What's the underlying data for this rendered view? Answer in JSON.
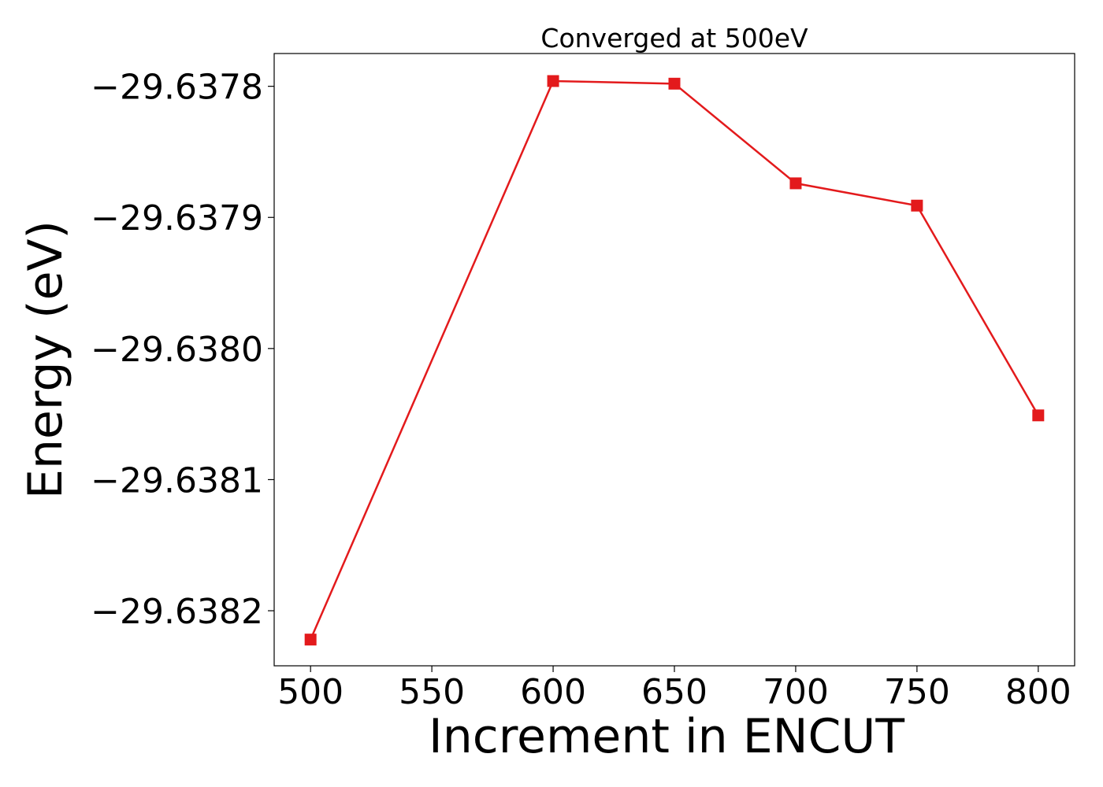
{
  "chart_data": {
    "type": "line",
    "title": "Converged at 500eV",
    "xlabel": "Increment in ENCUT",
    "ylabel": "Energy (eV)",
    "x": [
      500,
      600,
      650,
      700,
      750,
      800
    ],
    "series": [
      {
        "values": [
          -29.638222,
          -29.637796,
          -29.637798,
          -29.637874,
          -29.637891,
          -29.638051
        ],
        "color": "#e31a1c",
        "marker": "square"
      }
    ],
    "xlim": [
      485,
      815
    ],
    "ylim": [
      -29.638242,
      -29.637775
    ],
    "xticks": [
      500,
      550,
      600,
      650,
      700,
      750,
      800
    ],
    "xtick_labels": [
      "500",
      "550",
      "600",
      "650",
      "700",
      "750",
      "800"
    ],
    "yticks": [
      -29.6378,
      -29.6379,
      -29.638,
      -29.6381,
      -29.6382
    ],
    "ytick_labels": [
      "−29.6378",
      "−29.6379",
      "−29.6380",
      "−29.6381",
      "−29.6382"
    ],
    "grid": false,
    "legend": "none"
  }
}
